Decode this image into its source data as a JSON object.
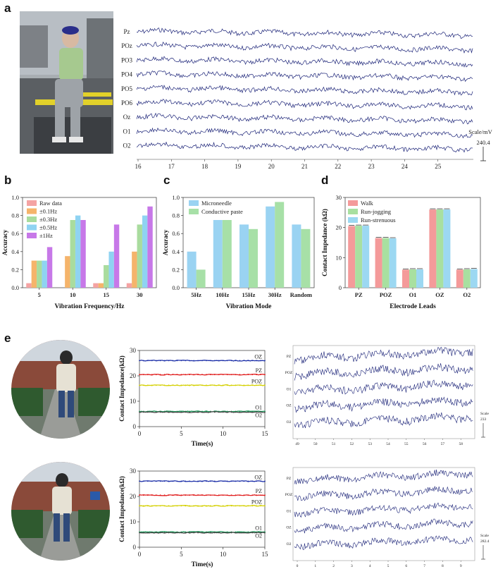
{
  "panels": {
    "a": "a",
    "b": "b",
    "c": "c",
    "d": "d",
    "e": "e"
  },
  "colors": {
    "trace": "#1a2277",
    "raw": "#f4a3a3",
    "f01": "#f5b46b",
    "f03": "#a9dc9e",
    "f05": "#8fd3f2",
    "f1": "#c778e8",
    "micro": "#9ad3f2",
    "paste": "#a7e0a7",
    "walk": "#f49a9a",
    "jog": "#a8e0a0",
    "strenuous": "#9cd8f2",
    "oz_line": "#1c2fa8",
    "pz_line": "#e01e1e",
    "poz_line": "#d4d000",
    "o1_line": "#1a9a5a",
    "o2_line": "#444444"
  },
  "panel_a": {
    "channels": [
      "Pz",
      "POz",
      "PO3",
      "PO4",
      "PO5",
      "PO6",
      "Oz",
      "O1",
      "O2"
    ],
    "x_ticks": [
      "16",
      "17",
      "18",
      "19",
      "20",
      "21",
      "22",
      "23",
      "24",
      "25"
    ],
    "scale_label": "Scale/mV",
    "scale_value": "240.4"
  },
  "chart_data": [
    {
      "type": "bar",
      "panel": "b",
      "xlabel": "Vibration Frequency/Hz",
      "ylabel": "Accuracy",
      "categories": [
        "5",
        "10",
        "15",
        "30"
      ],
      "ylim": [
        0,
        1.0
      ],
      "yticks": [
        "0.0",
        "0.2",
        "0.4",
        "0.6",
        "0.8",
        "1.0"
      ],
      "legend_position": "top-left",
      "series": [
        {
          "name": "Raw data",
          "color_key": "raw",
          "values": [
            0.05,
            0.0,
            0.05,
            0.05
          ]
        },
        {
          "name": "±0.1Hz",
          "color_key": "f01",
          "values": [
            0.3,
            0.35,
            0.05,
            0.4
          ]
        },
        {
          "name": "±0.3Hz",
          "color_key": "f03",
          "values": [
            0.3,
            0.75,
            0.25,
            0.7
          ]
        },
        {
          "name": "±0.5Hz",
          "color_key": "f05",
          "values": [
            0.3,
            0.8,
            0.4,
            0.8
          ]
        },
        {
          "name": "±1Hz",
          "color_key": "f1",
          "values": [
            0.45,
            0.75,
            0.7,
            0.9
          ]
        }
      ]
    },
    {
      "type": "bar",
      "panel": "c",
      "xlabel": "Vibration Mode",
      "ylabel": "Accuracy",
      "categories": [
        "5Hz",
        "10Hz",
        "15Hz",
        "30Hz",
        "Random"
      ],
      "ylim": [
        0,
        1.0
      ],
      "yticks": [
        "0.0",
        "0.2",
        "0.4",
        "0.6",
        "0.8",
        "1.0"
      ],
      "legend_position": "top-left",
      "series": [
        {
          "name": "Microneedle",
          "color_key": "micro",
          "values": [
            0.4,
            0.75,
            0.7,
            0.9,
            0.7
          ]
        },
        {
          "name": "Conductive paste",
          "color_key": "paste",
          "values": [
            0.2,
            0.75,
            0.65,
            0.95,
            0.65
          ]
        }
      ]
    },
    {
      "type": "bar",
      "panel": "d",
      "xlabel": "Electrode Leads",
      "ylabel": "Contact Impedance (kΩ)",
      "categories": [
        "PZ",
        "POZ",
        "O1",
        "OZ",
        "O2"
      ],
      "ylim": [
        0,
        30
      ],
      "yticks": [
        "0",
        "10",
        "20",
        "30"
      ],
      "legend_position": "top-left",
      "series": [
        {
          "name": "Walk",
          "color_key": "walk",
          "values": [
            20.5,
            16.5,
            6.0,
            26.0,
            6.0
          ]
        },
        {
          "name": "Run-jogging",
          "color_key": "jog",
          "values": [
            20.6,
            16.5,
            6.1,
            26.0,
            6.1
          ]
        },
        {
          "name": "Run-strenuous",
          "color_key": "strenuous",
          "values": [
            20.6,
            16.4,
            6.1,
            26.0,
            6.2
          ]
        }
      ]
    },
    {
      "type": "line",
      "panel": "e-top",
      "xlabel": "Time(s)",
      "ylabel": "Contact Impedance(kΩ)",
      "xlim": [
        0,
        15
      ],
      "ylim": [
        0,
        30
      ],
      "xticks": [
        "0",
        "5",
        "10",
        "15"
      ],
      "yticks": [
        "0",
        "10",
        "20",
        "30"
      ],
      "series": [
        {
          "name": "OZ",
          "color_key": "oz_line",
          "value": 26.0
        },
        {
          "name": "PZ",
          "color_key": "pz_line",
          "value": 20.5
        },
        {
          "name": "POZ",
          "color_key": "poz_line",
          "value": 16.3
        },
        {
          "name": "O1",
          "color_key": "o1_line",
          "value": 6.0
        },
        {
          "name": "O2",
          "color_key": "o2_line",
          "value": 5.7
        }
      ]
    },
    {
      "type": "line",
      "panel": "e-bottom",
      "xlabel": "Time(s)",
      "ylabel": "Contact Impedance(kΩ)",
      "xlim": [
        0,
        15
      ],
      "ylim": [
        0,
        30
      ],
      "xticks": [
        "0",
        "5",
        "10",
        "15"
      ],
      "yticks": [
        "0",
        "10",
        "20",
        "30"
      ],
      "series": [
        {
          "name": "OZ",
          "color_key": "oz_line",
          "value": 26.0
        },
        {
          "name": "PZ",
          "color_key": "pz_line",
          "value": 20.5
        },
        {
          "name": "POZ",
          "color_key": "poz_line",
          "value": 16.3
        },
        {
          "name": "O1",
          "color_key": "o1_line",
          "value": 6.0
        },
        {
          "name": "O2",
          "color_key": "o2_line",
          "value": 5.7
        }
      ]
    }
  ],
  "panel_e_eeg_top": {
    "channels": [
      "PZ",
      "POZ",
      "O1",
      "OZ",
      "O2"
    ],
    "x_ticks": [
      "49",
      "50",
      "51",
      "52",
      "53",
      "54",
      "55",
      "56",
      "57",
      "58"
    ],
    "scale_label": "Scale",
    "scale_value": "233"
  },
  "panel_e_eeg_bottom": {
    "channels": [
      "PZ",
      "POZ",
      "O1",
      "OZ",
      "O2"
    ],
    "x_ticks": [
      "0",
      "1",
      "2",
      "3",
      "4",
      "5",
      "6",
      "7",
      "8",
      "9"
    ],
    "scale_label": "Scale",
    "scale_value": "282.4"
  }
}
